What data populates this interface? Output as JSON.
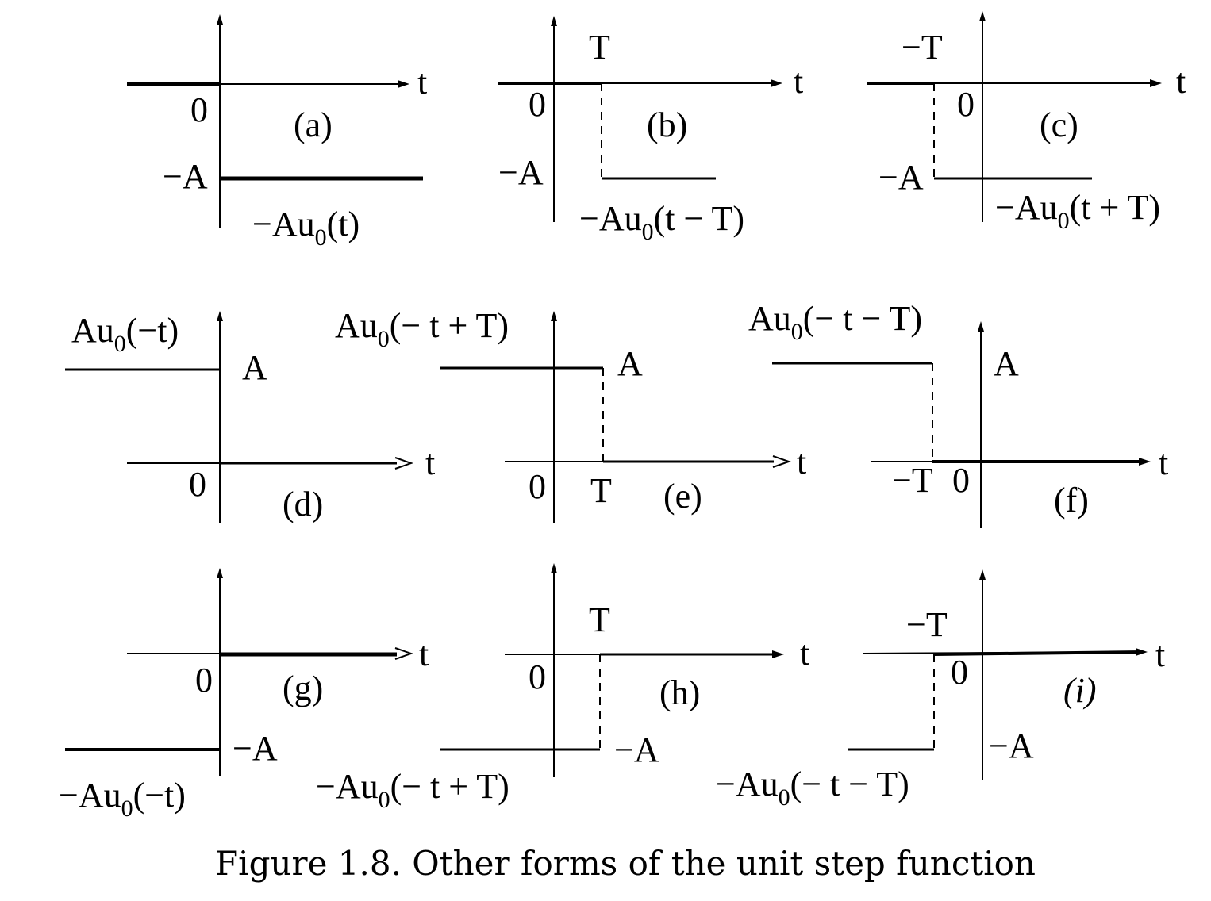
{
  "figure": {
    "caption": "Figure 1.8.  Other forms of the unit step function",
    "axis_label": "t",
    "origin_label": "0",
    "panels": [
      {
        "id": "a",
        "tag": "(a)",
        "expr": "−Au₀(t)",
        "amp_label": "−A",
        "shift_label": "",
        "italic_tag": false
      },
      {
        "id": "b",
        "tag": "(b)",
        "expr": "−Au₀(t − T)",
        "amp_label": "−A",
        "shift_label": "T",
        "italic_tag": false
      },
      {
        "id": "c",
        "tag": "(c)",
        "expr": "−Au₀(t + T)",
        "amp_label": "−A",
        "shift_label": "−T",
        "italic_tag": false
      },
      {
        "id": "d",
        "tag": "(d)",
        "expr": "Au₀(−t)",
        "amp_label": "A",
        "shift_label": "",
        "italic_tag": false
      },
      {
        "id": "e",
        "tag": "(e)",
        "expr": "Au₀(− t + T)",
        "amp_label": "A",
        "shift_label": "T",
        "italic_tag": false
      },
      {
        "id": "f",
        "tag": "(f)",
        "expr": "Au₀(− t − T)",
        "amp_label": "A",
        "shift_label": "−T",
        "italic_tag": false
      },
      {
        "id": "g",
        "tag": "(g)",
        "expr": "−Au₀(−t)",
        "amp_label": "−A",
        "shift_label": "",
        "italic_tag": false
      },
      {
        "id": "h",
        "tag": "(h)",
        "expr": "−Au₀(− t + T)",
        "amp_label": "−A",
        "shift_label": "T",
        "italic_tag": false
      },
      {
        "id": "i",
        "tag": "(i)",
        "expr": "−Au₀(− t − T)",
        "amp_label": "−A",
        "shift_label": "−T",
        "italic_tag": true
      }
    ]
  }
}
